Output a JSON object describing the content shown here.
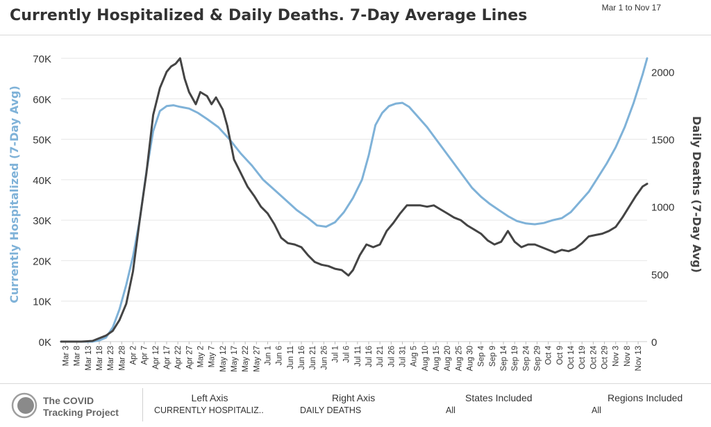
{
  "header": {
    "title": "Currently Hospitalized & Daily Deaths. 7-Day Average Lines",
    "date_range": "Mar 1 to Nov 17"
  },
  "footer": {
    "brand_line1": "The COVID",
    "brand_line2": "Tracking Project",
    "left_axis_label": "Left Axis",
    "left_axis_value": "CURRENTLY HOSPITALIZ..",
    "right_axis_label": "Right Axis",
    "right_axis_value": "DAILY DEATHS",
    "states_label": "States Included",
    "states_value": "All",
    "regions_label": "Regions Included",
    "regions_value": "All"
  },
  "colors": {
    "hospitalized": "#7fb2d8",
    "deaths": "#444444",
    "grid": "#e6e6e6",
    "left_axis_title": "#7fb2d8",
    "right_axis_title": "#444444"
  },
  "chart_data": {
    "type": "line",
    "title": "Currently Hospitalized & Daily Deaths. 7-Day Average Lines",
    "ylabel_left": "Currently Hospitalized (7-Day Avg)",
    "ylabel_right": "Daily Deaths (7-Day Avg)",
    "ylim_left": [
      0,
      70000
    ],
    "ylim_right": [
      0,
      2100
    ],
    "yticks_left": [
      "0K",
      "10K",
      "20K",
      "30K",
      "40K",
      "50K",
      "60K",
      "70K"
    ],
    "yticks_right": [
      "0",
      "500",
      "1000",
      "1500",
      "2000"
    ],
    "xticks": [
      "Mar 3",
      "Mar 8",
      "Mar 13",
      "Mar 18",
      "Mar 23",
      "Mar 28",
      "Apr 2",
      "Apr 7",
      "Apr 12",
      "Apr 17",
      "Apr 22",
      "Apr 27",
      "May 2",
      "May 7",
      "May 12",
      "May 17",
      "May 22",
      "May 27",
      "Jun 1",
      "Jun 6",
      "Jun 11",
      "Jun 16",
      "Jun 21",
      "Jun 26",
      "Jul 1",
      "Jul 6",
      "Jul 11",
      "Jul 16",
      "Jul 21",
      "Jul 26",
      "Jul 31",
      "Aug 5",
      "Aug 10",
      "Aug 15",
      "Aug 20",
      "Aug 25",
      "Aug 30",
      "Sep 4",
      "Sep 9",
      "Sep 14",
      "Sep 19",
      "Sep 24",
      "Sep 29",
      "Oct 4",
      "Oct 9",
      "Oct 14",
      "Oct 19",
      "Oct 24",
      "Oct 29",
      "Nov 3",
      "Nov 8",
      "Nov 13"
    ],
    "grid": true,
    "x_start": "Mar 1",
    "x_end": "Nov 17",
    "series": [
      {
        "name": "Currently Hospitalized",
        "axis": "left",
        "points": [
          [
            "Mar 1",
            0
          ],
          [
            "Mar 10",
            0
          ],
          [
            "Mar 15",
            0
          ],
          [
            "Mar 18",
            300
          ],
          [
            "Mar 21",
            1000
          ],
          [
            "Mar 24",
            3500
          ],
          [
            "Mar 27",
            8000
          ],
          [
            "Mar 30",
            14000
          ],
          [
            "Apr 2",
            21000
          ],
          [
            "Apr 5",
            30000
          ],
          [
            "Apr 8",
            42000
          ],
          [
            "Apr 11",
            52000
          ],
          [
            "Apr 14",
            57000
          ],
          [
            "Apr 17",
            58200
          ],
          [
            "Apr 20",
            58400
          ],
          [
            "Apr 23",
            58000
          ],
          [
            "Apr 27",
            57600
          ],
          [
            "May 1",
            56500
          ],
          [
            "May 5",
            55000
          ],
          [
            "May 10",
            53000
          ],
          [
            "May 15",
            50000
          ],
          [
            "May 20",
            46500
          ],
          [
            "May 25",
            43500
          ],
          [
            "May 30",
            40000
          ],
          [
            "Jun 4",
            37500
          ],
          [
            "Jun 9",
            35000
          ],
          [
            "Jun 14",
            32500
          ],
          [
            "Jun 19",
            30500
          ],
          [
            "Jun 23",
            28700
          ],
          [
            "Jun 27",
            28400
          ],
          [
            "Jul 1",
            29500
          ],
          [
            "Jul 5",
            32000
          ],
          [
            "Jul 9",
            35500
          ],
          [
            "Jul 13",
            40000
          ],
          [
            "Jul 16",
            46000
          ],
          [
            "Jul 19",
            53500
          ],
          [
            "Jul 22",
            56500
          ],
          [
            "Jul 25",
            58200
          ],
          [
            "Jul 28",
            58800
          ],
          [
            "Jul 31",
            59000
          ],
          [
            "Aug 3",
            58000
          ],
          [
            "Aug 7",
            55500
          ],
          [
            "Aug 11",
            53000
          ],
          [
            "Aug 15",
            50000
          ],
          [
            "Aug 19",
            47000
          ],
          [
            "Aug 23",
            44000
          ],
          [
            "Aug 27",
            41000
          ],
          [
            "Aug 31",
            38000
          ],
          [
            "Sep 4",
            35800
          ],
          [
            "Sep 8",
            34000
          ],
          [
            "Sep 12",
            32500
          ],
          [
            "Sep 16",
            31000
          ],
          [
            "Sep 20",
            29800
          ],
          [
            "Sep 24",
            29200
          ],
          [
            "Sep 28",
            29000
          ],
          [
            "Oct 2",
            29300
          ],
          [
            "Oct 6",
            30000
          ],
          [
            "Oct 10",
            30500
          ],
          [
            "Oct 14",
            32000
          ],
          [
            "Oct 18",
            34500
          ],
          [
            "Oct 22",
            37000
          ],
          [
            "Oct 26",
            40500
          ],
          [
            "Oct 30",
            44000
          ],
          [
            "Nov 3",
            48000
          ],
          [
            "Nov 7",
            53000
          ],
          [
            "Nov 11",
            59000
          ],
          [
            "Nov 15",
            66000
          ],
          [
            "Nov 17",
            70000
          ]
        ]
      },
      {
        "name": "Daily Deaths",
        "axis": "right",
        "points": [
          [
            "Mar 1",
            0
          ],
          [
            "Mar 10",
            0
          ],
          [
            "Mar 15",
            5
          ],
          [
            "Mar 18",
            25
          ],
          [
            "Mar 21",
            45
          ],
          [
            "Mar 24",
            80
          ],
          [
            "Mar 27",
            160
          ],
          [
            "Mar 30",
            280
          ],
          [
            "Apr 2",
            520
          ],
          [
            "Apr 5",
            900
          ],
          [
            "Apr 8",
            1250
          ],
          [
            "Apr 11",
            1680
          ],
          [
            "Apr 14",
            1880
          ],
          [
            "Apr 17",
            2000
          ],
          [
            "Apr 19",
            2040
          ],
          [
            "Apr 21",
            2060
          ],
          [
            "Apr 23",
            2100
          ],
          [
            "Apr 25",
            1950
          ],
          [
            "Apr 27",
            1850
          ],
          [
            "Apr 30",
            1760
          ],
          [
            "May 2",
            1850
          ],
          [
            "May 5",
            1820
          ],
          [
            "May 7",
            1760
          ],
          [
            "May 9",
            1810
          ],
          [
            "May 12",
            1720
          ],
          [
            "May 14",
            1600
          ],
          [
            "May 17",
            1350
          ],
          [
            "May 20",
            1250
          ],
          [
            "May 23",
            1150
          ],
          [
            "May 26",
            1080
          ],
          [
            "May 29",
            1000
          ],
          [
            "Jun 1",
            950
          ],
          [
            "Jun 4",
            870
          ],
          [
            "Jun 7",
            770
          ],
          [
            "Jun 10",
            730
          ],
          [
            "Jun 13",
            720
          ],
          [
            "Jun 16",
            700
          ],
          [
            "Jun 19",
            640
          ],
          [
            "Jun 22",
            590
          ],
          [
            "Jun 25",
            570
          ],
          [
            "Jun 28",
            560
          ],
          [
            "Jul 1",
            540
          ],
          [
            "Jul 4",
            530
          ],
          [
            "Jul 7",
            490
          ],
          [
            "Jul 9",
            530
          ],
          [
            "Jul 12",
            640
          ],
          [
            "Jul 15",
            720
          ],
          [
            "Jul 18",
            700
          ],
          [
            "Jul 21",
            720
          ],
          [
            "Jul 24",
            820
          ],
          [
            "Jul 27",
            880
          ],
          [
            "Jul 30",
            950
          ],
          [
            "Aug 2",
            1010
          ],
          [
            "Aug 5",
            1010
          ],
          [
            "Aug 8",
            1010
          ],
          [
            "Aug 11",
            1000
          ],
          [
            "Aug 14",
            1010
          ],
          [
            "Aug 17",
            980
          ],
          [
            "Aug 20",
            950
          ],
          [
            "Aug 23",
            920
          ],
          [
            "Aug 26",
            900
          ],
          [
            "Aug 29",
            860
          ],
          [
            "Sep 1",
            830
          ],
          [
            "Sep 4",
            800
          ],
          [
            "Sep 7",
            750
          ],
          [
            "Sep 10",
            720
          ],
          [
            "Sep 13",
            740
          ],
          [
            "Sep 16",
            820
          ],
          [
            "Sep 19",
            740
          ],
          [
            "Sep 22",
            700
          ],
          [
            "Sep 25",
            720
          ],
          [
            "Sep 28",
            720
          ],
          [
            "Oct 1",
            700
          ],
          [
            "Oct 4",
            680
          ],
          [
            "Oct 7",
            660
          ],
          [
            "Oct 10",
            680
          ],
          [
            "Oct 13",
            670
          ],
          [
            "Oct 16",
            690
          ],
          [
            "Oct 19",
            730
          ],
          [
            "Oct 22",
            780
          ],
          [
            "Oct 25",
            790
          ],
          [
            "Oct 28",
            800
          ],
          [
            "Oct 31",
            820
          ],
          [
            "Nov 3",
            850
          ],
          [
            "Nov 6",
            920
          ],
          [
            "Nov 9",
            1000
          ],
          [
            "Nov 12",
            1080
          ],
          [
            "Nov 15",
            1150
          ],
          [
            "Nov 17",
            1170
          ]
        ]
      }
    ]
  }
}
